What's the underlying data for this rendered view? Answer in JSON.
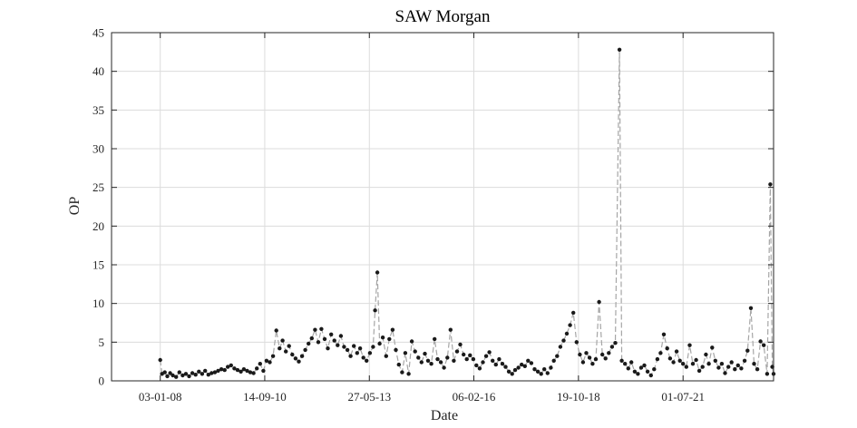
{
  "chart_data": {
    "type": "line",
    "title": "SAW Morgan",
    "xlabel": "Date",
    "ylabel": "OP",
    "xlim": [
      "2006-10-01",
      "2023-11-01"
    ],
    "ylim": [
      0,
      45
    ],
    "grid": true,
    "xticks": [
      {
        "date": "2008-01-03",
        "label": "03-01-08"
      },
      {
        "date": "2010-09-14",
        "label": "14-09-10"
      },
      {
        "date": "2013-05-27",
        "label": "27-05-13"
      },
      {
        "date": "2016-02-06",
        "label": "06-02-16"
      },
      {
        "date": "2018-10-19",
        "label": "19-10-18"
      },
      {
        "date": "2021-07-01",
        "label": "01-07-21"
      }
    ],
    "yticks": [
      0,
      5,
      10,
      15,
      20,
      25,
      30,
      35,
      40,
      45
    ],
    "series": [
      {
        "marker": "dot",
        "line_style": "dashed",
        "line_color": "#a6a6a6",
        "marker_color": "#1a1a1a",
        "points": [
          [
            "2008-01-03",
            2.7
          ],
          [
            "2008-01-20",
            0.9
          ],
          [
            "2008-02-15",
            1.1
          ],
          [
            "2008-03-10",
            0.6
          ],
          [
            "2008-04-05",
            1.0
          ],
          [
            "2008-05-01",
            0.7
          ],
          [
            "2008-06-01",
            0.5
          ],
          [
            "2008-07-01",
            1.1
          ],
          [
            "2008-08-01",
            0.7
          ],
          [
            "2008-09-01",
            0.9
          ],
          [
            "2008-10-01",
            0.6
          ],
          [
            "2008-11-01",
            1.0
          ],
          [
            "2008-12-01",
            0.8
          ],
          [
            "2009-01-01",
            1.2
          ],
          [
            "2009-02-01",
            0.9
          ],
          [
            "2009-03-01",
            1.3
          ],
          [
            "2009-04-01",
            0.8
          ],
          [
            "2009-05-01",
            1.0
          ],
          [
            "2009-06-01",
            1.1
          ],
          [
            "2009-07-01",
            1.3
          ],
          [
            "2009-08-01",
            1.5
          ],
          [
            "2009-09-01",
            1.4
          ],
          [
            "2009-10-01",
            1.8
          ],
          [
            "2009-11-01",
            2.0
          ],
          [
            "2009-12-01",
            1.6
          ],
          [
            "2010-01-01",
            1.4
          ],
          [
            "2010-02-01",
            1.2
          ],
          [
            "2010-03-01",
            1.5
          ],
          [
            "2010-04-01",
            1.3
          ],
          [
            "2010-05-01",
            1.1
          ],
          [
            "2010-06-01",
            1.0
          ],
          [
            "2010-07-01",
            1.6
          ],
          [
            "2010-08-01",
            2.2
          ],
          [
            "2010-09-01",
            1.3
          ],
          [
            "2010-10-01",
            2.6
          ],
          [
            "2010-11-01",
            2.4
          ],
          [
            "2010-12-01",
            3.2
          ],
          [
            "2011-01-01",
            6.5
          ],
          [
            "2011-02-01",
            4.2
          ],
          [
            "2011-03-01",
            5.2
          ],
          [
            "2011-04-01",
            3.8
          ],
          [
            "2011-05-01",
            4.5
          ],
          [
            "2011-06-01",
            3.4
          ],
          [
            "2011-07-01",
            2.9
          ],
          [
            "2011-08-01",
            2.5
          ],
          [
            "2011-09-01",
            3.2
          ],
          [
            "2011-10-01",
            4.0
          ],
          [
            "2011-11-01",
            4.8
          ],
          [
            "2011-12-01",
            5.5
          ],
          [
            "2012-01-01",
            6.6
          ],
          [
            "2012-02-01",
            5.0
          ],
          [
            "2012-03-01",
            6.7
          ],
          [
            "2012-04-01",
            5.4
          ],
          [
            "2012-05-01",
            4.2
          ],
          [
            "2012-06-01",
            6.0
          ],
          [
            "2012-07-01",
            5.2
          ],
          [
            "2012-08-01",
            4.6
          ],
          [
            "2012-09-01",
            5.8
          ],
          [
            "2012-10-01",
            4.4
          ],
          [
            "2012-11-01",
            4.0
          ],
          [
            "2012-12-01",
            3.2
          ],
          [
            "2013-01-01",
            4.5
          ],
          [
            "2013-02-01",
            3.6
          ],
          [
            "2013-03-01",
            4.2
          ],
          [
            "2013-04-01",
            3.0
          ],
          [
            "2013-05-01",
            2.6
          ],
          [
            "2013-06-01",
            3.6
          ],
          [
            "2013-07-01",
            4.4
          ],
          [
            "2013-07-20",
            9.1
          ],
          [
            "2013-08-10",
            14.0
          ],
          [
            "2013-09-01",
            4.8
          ],
          [
            "2013-10-01",
            5.6
          ],
          [
            "2013-11-01",
            3.2
          ],
          [
            "2013-12-01",
            5.4
          ],
          [
            "2014-01-01",
            6.6
          ],
          [
            "2014-02-01",
            4.0
          ],
          [
            "2014-03-01",
            2.1
          ],
          [
            "2014-04-01",
            1.1
          ],
          [
            "2014-05-01",
            3.6
          ],
          [
            "2014-06-01",
            0.9
          ],
          [
            "2014-07-01",
            5.1
          ],
          [
            "2014-08-01",
            3.8
          ],
          [
            "2014-09-01",
            3.0
          ],
          [
            "2014-10-01",
            2.4
          ],
          [
            "2014-11-01",
            3.5
          ],
          [
            "2014-12-01",
            2.6
          ],
          [
            "2015-01-01",
            2.2
          ],
          [
            "2015-02-01",
            5.4
          ],
          [
            "2015-03-01",
            2.8
          ],
          [
            "2015-04-01",
            2.4
          ],
          [
            "2015-05-01",
            1.7
          ],
          [
            "2015-06-01",
            3.0
          ],
          [
            "2015-07-01",
            6.6
          ],
          [
            "2015-08-01",
            2.6
          ],
          [
            "2015-09-01",
            3.8
          ],
          [
            "2015-10-01",
            4.7
          ],
          [
            "2015-11-01",
            3.4
          ],
          [
            "2015-12-01",
            2.8
          ],
          [
            "2016-01-01",
            3.3
          ],
          [
            "2016-02-01",
            2.8
          ],
          [
            "2016-03-01",
            2.0
          ],
          [
            "2016-04-01",
            1.6
          ],
          [
            "2016-05-01",
            2.4
          ],
          [
            "2016-06-01",
            3.2
          ],
          [
            "2016-07-01",
            3.7
          ],
          [
            "2016-08-01",
            2.6
          ],
          [
            "2016-09-01",
            2.1
          ],
          [
            "2016-10-01",
            2.8
          ],
          [
            "2016-11-01",
            2.2
          ],
          [
            "2016-12-01",
            1.8
          ],
          [
            "2017-01-01",
            1.2
          ],
          [
            "2017-02-01",
            0.9
          ],
          [
            "2017-03-01",
            1.4
          ],
          [
            "2017-04-01",
            1.7
          ],
          [
            "2017-05-01",
            2.1
          ],
          [
            "2017-06-01",
            1.9
          ],
          [
            "2017-07-01",
            2.6
          ],
          [
            "2017-08-01",
            2.3
          ],
          [
            "2017-09-01",
            1.5
          ],
          [
            "2017-10-01",
            1.2
          ],
          [
            "2017-11-01",
            0.9
          ],
          [
            "2017-12-01",
            1.5
          ],
          [
            "2018-01-01",
            1.0
          ],
          [
            "2018-02-01",
            1.7
          ],
          [
            "2018-03-01",
            2.6
          ],
          [
            "2018-04-01",
            3.2
          ],
          [
            "2018-05-01",
            4.4
          ],
          [
            "2018-06-01",
            5.2
          ],
          [
            "2018-07-01",
            6.1
          ],
          [
            "2018-08-01",
            7.2
          ],
          [
            "2018-09-01",
            8.8
          ],
          [
            "2018-10-01",
            5.0
          ],
          [
            "2018-11-01",
            3.4
          ],
          [
            "2018-12-01",
            2.4
          ],
          [
            "2019-01-01",
            3.6
          ],
          [
            "2019-02-01",
            3.0
          ],
          [
            "2019-03-01",
            2.2
          ],
          [
            "2019-04-01",
            2.8
          ],
          [
            "2019-05-01",
            10.2
          ],
          [
            "2019-06-01",
            3.4
          ],
          [
            "2019-07-01",
            2.9
          ],
          [
            "2019-08-01",
            3.6
          ],
          [
            "2019-09-01",
            4.4
          ],
          [
            "2019-10-01",
            4.9
          ],
          [
            "2019-11-10",
            42.8
          ],
          [
            "2019-12-01",
            2.6
          ],
          [
            "2020-01-01",
            2.2
          ],
          [
            "2020-02-01",
            1.6
          ],
          [
            "2020-03-01",
            2.4
          ],
          [
            "2020-04-01",
            1.2
          ],
          [
            "2020-05-01",
            0.9
          ],
          [
            "2020-06-01",
            1.7
          ],
          [
            "2020-07-01",
            2.0
          ],
          [
            "2020-08-01",
            1.2
          ],
          [
            "2020-09-01",
            0.7
          ],
          [
            "2020-10-01",
            1.5
          ],
          [
            "2020-11-01",
            2.8
          ],
          [
            "2020-12-01",
            3.6
          ],
          [
            "2021-01-01",
            6.0
          ],
          [
            "2021-02-01",
            4.2
          ],
          [
            "2021-03-01",
            2.9
          ],
          [
            "2021-04-01",
            2.4
          ],
          [
            "2021-05-01",
            3.8
          ],
          [
            "2021-06-01",
            2.6
          ],
          [
            "2021-07-01",
            2.2
          ],
          [
            "2021-08-01",
            1.8
          ],
          [
            "2021-09-01",
            4.6
          ],
          [
            "2021-10-01",
            2.2
          ],
          [
            "2021-11-01",
            2.7
          ],
          [
            "2021-12-01",
            1.3
          ],
          [
            "2022-01-01",
            1.8
          ],
          [
            "2022-02-01",
            3.4
          ],
          [
            "2022-03-01",
            2.2
          ],
          [
            "2022-04-01",
            4.3
          ],
          [
            "2022-05-01",
            2.6
          ],
          [
            "2022-06-01",
            1.7
          ],
          [
            "2022-07-01",
            2.2
          ],
          [
            "2022-08-01",
            1.0
          ],
          [
            "2022-09-01",
            1.8
          ],
          [
            "2022-10-01",
            2.4
          ],
          [
            "2022-11-01",
            1.5
          ],
          [
            "2022-12-01",
            2.0
          ],
          [
            "2023-01-01",
            1.6
          ],
          [
            "2023-02-01",
            2.6
          ],
          [
            "2023-03-01",
            3.9
          ],
          [
            "2023-04-01",
            9.4
          ],
          [
            "2023-05-01",
            2.2
          ],
          [
            "2023-06-01",
            1.5
          ],
          [
            "2023-07-01",
            5.1
          ],
          [
            "2023-08-01",
            4.6
          ],
          [
            "2023-09-01",
            0.9
          ],
          [
            "2023-10-01",
            25.4
          ],
          [
            "2023-10-20",
            1.8
          ],
          [
            "2023-11-01",
            0.9
          ]
        ]
      }
    ]
  }
}
